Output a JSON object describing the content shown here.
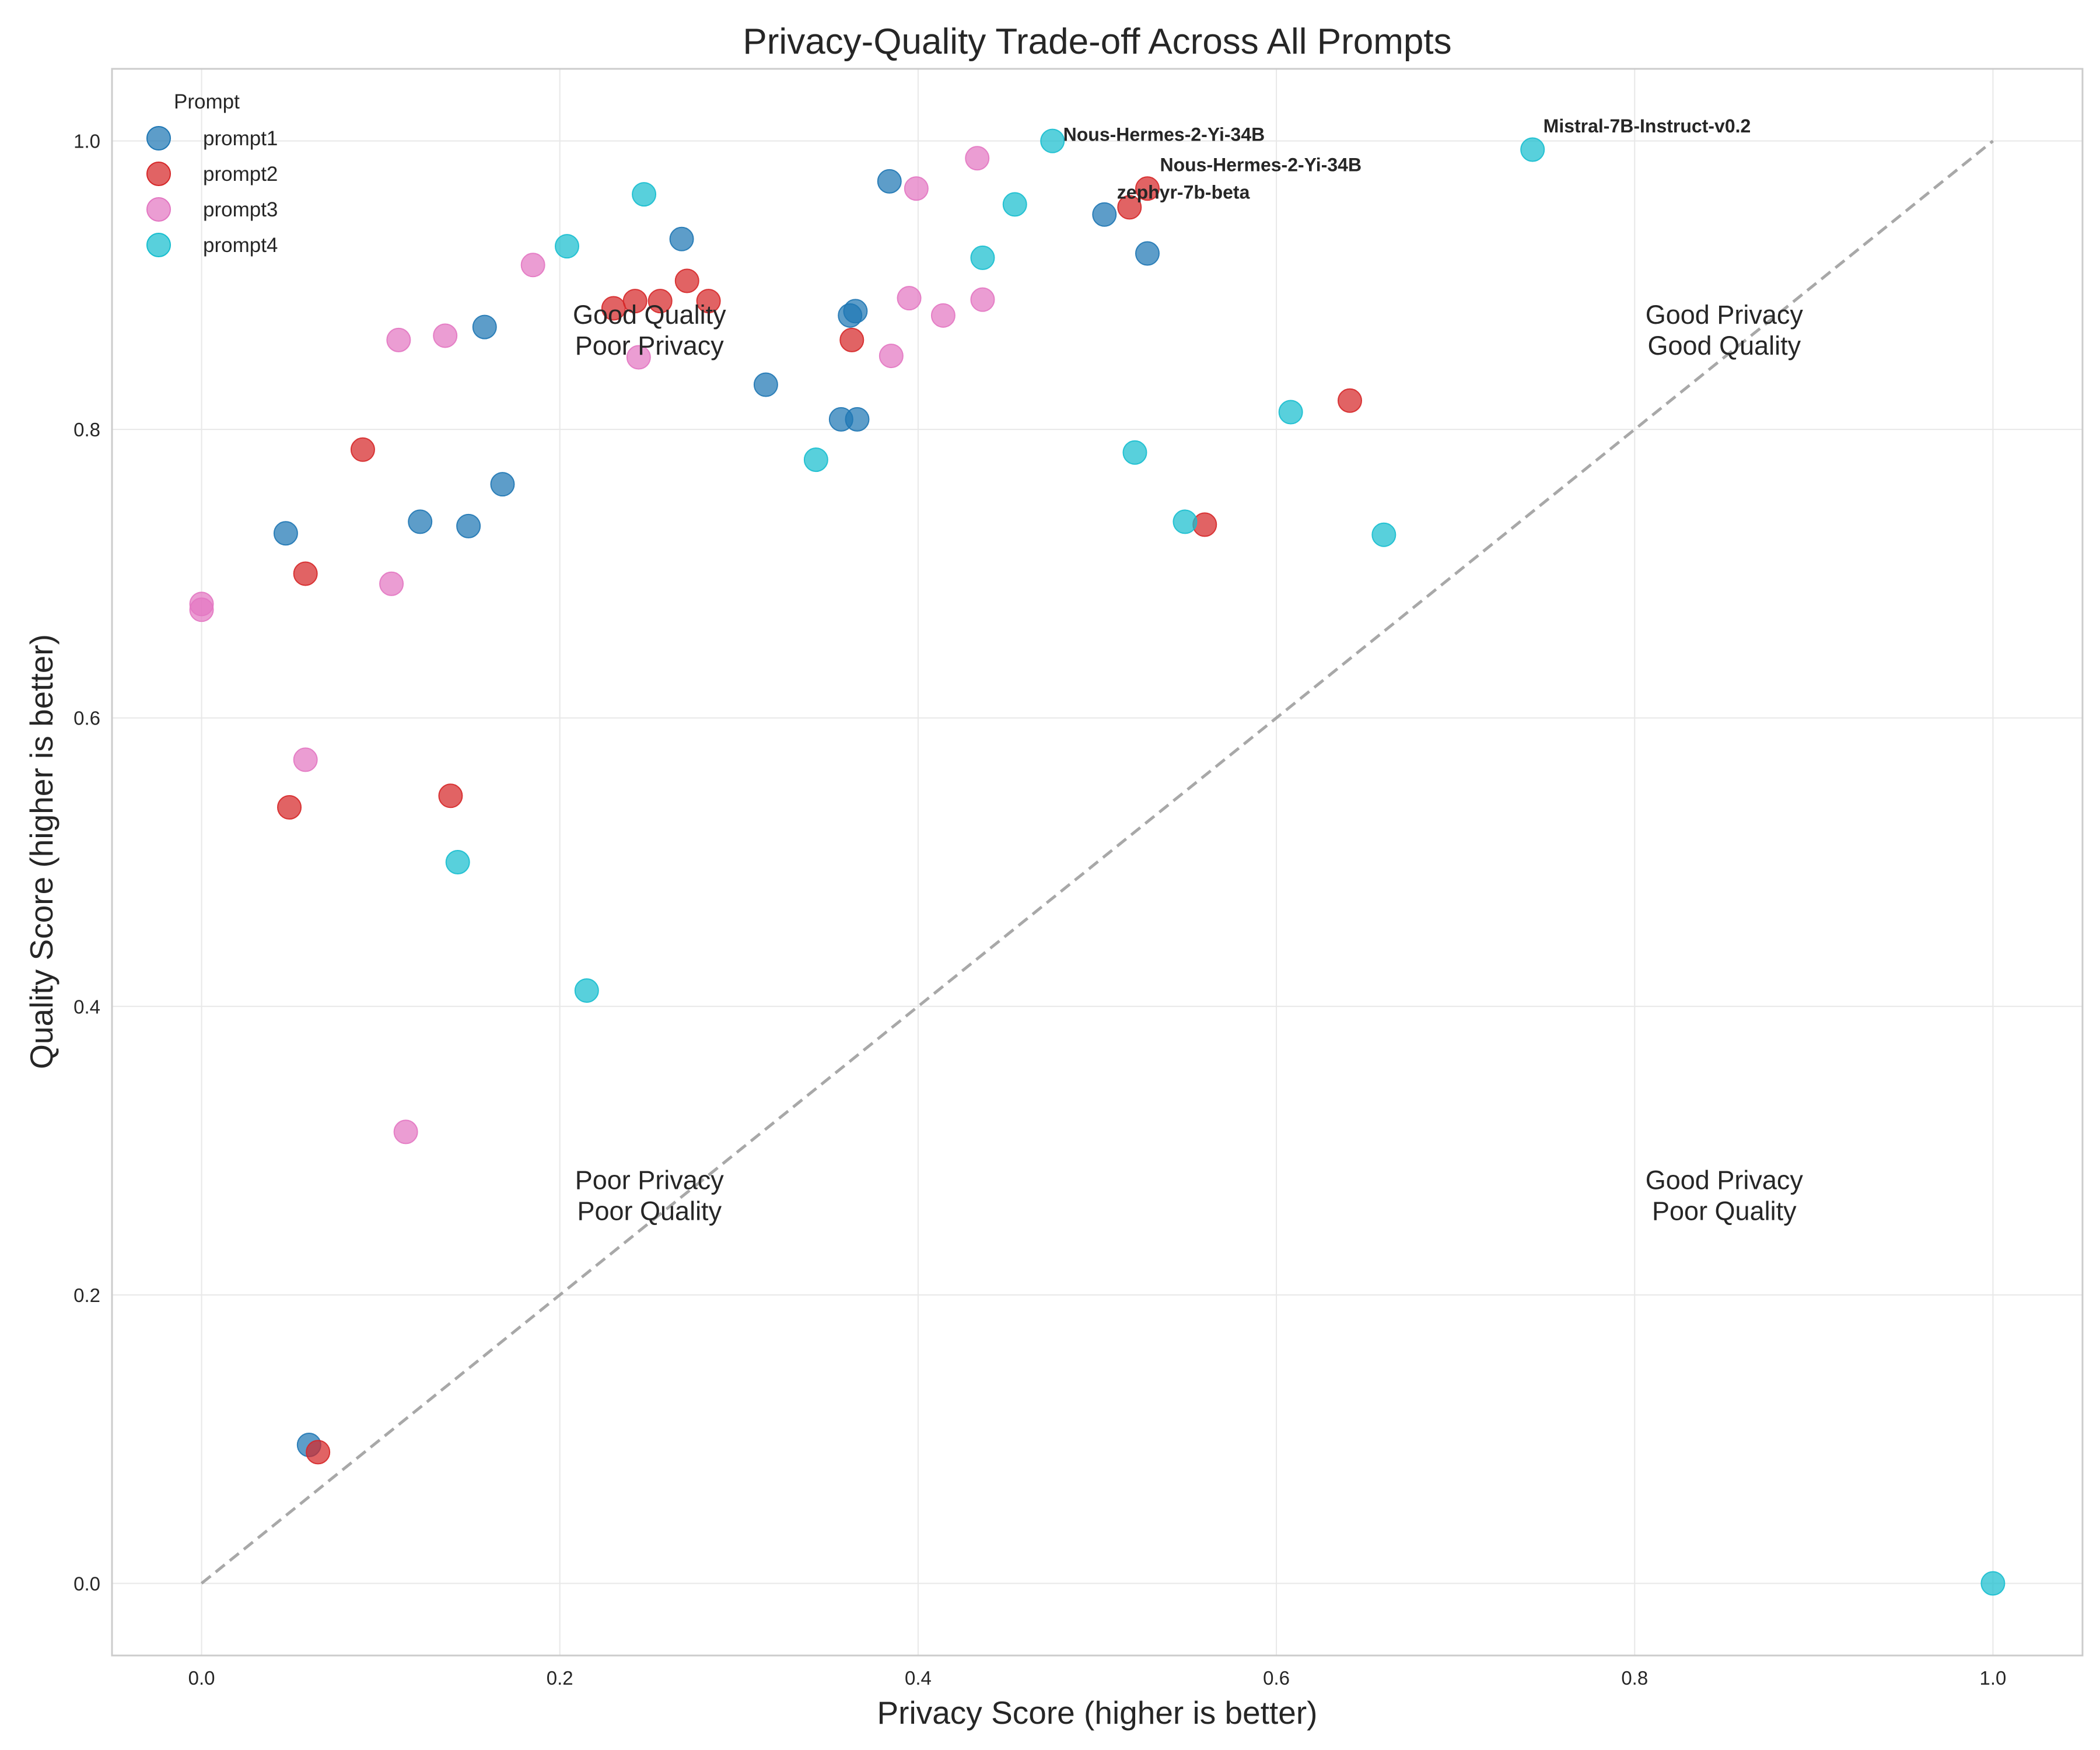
{
  "chart_data": {
    "type": "scatter",
    "title": "Privacy-Quality Trade-off Across All Prompts",
    "xlabel": "Privacy Score (higher is better)",
    "ylabel": "Quality Score (higher is better)",
    "xlim": [
      -0.05,
      1.05
    ],
    "ylim": [
      -0.05,
      1.05
    ],
    "xticks": [
      0.0,
      0.2,
      0.4,
      0.6,
      0.8,
      1.0
    ],
    "yticks": [
      0.0,
      0.2,
      0.4,
      0.6,
      0.8,
      1.0
    ],
    "xtick_labels": [
      "0.0",
      "0.2",
      "0.4",
      "0.6",
      "0.8",
      "1.0"
    ],
    "ytick_labels": [
      "0.0",
      "0.2",
      "0.4",
      "0.6",
      "0.8",
      "1.0"
    ],
    "grid": true,
    "diagonal_reference": [
      [
        0,
        0
      ],
      [
        1,
        1
      ]
    ],
    "legend": {
      "title": "Prompt",
      "placement": "top-left"
    },
    "series": [
      {
        "name": "prompt1",
        "color": "#1f77b4",
        "points": [
          [
            0.047,
            0.728
          ],
          [
            0.122,
            0.736
          ],
          [
            0.149,
            0.733
          ],
          [
            0.158,
            0.871
          ],
          [
            0.168,
            0.762
          ],
          [
            0.268,
            0.932
          ],
          [
            0.315,
            0.831
          ],
          [
            0.357,
            0.807
          ],
          [
            0.362,
            0.879
          ],
          [
            0.365,
            0.882
          ],
          [
            0.366,
            0.807
          ],
          [
            0.384,
            0.972
          ],
          [
            0.504,
            0.949
          ],
          [
            0.528,
            0.922
          ],
          [
            0.06,
            0.096
          ]
        ]
      },
      {
        "name": "prompt2",
        "color": "#d62728",
        "points": [
          [
            0.09,
            0.786
          ],
          [
            0.058,
            0.7
          ],
          [
            0.049,
            0.538
          ],
          [
            0.139,
            0.546
          ],
          [
            0.23,
            0.884
          ],
          [
            0.242,
            0.889
          ],
          [
            0.256,
            0.889
          ],
          [
            0.271,
            0.903
          ],
          [
            0.283,
            0.889
          ],
          [
            0.363,
            0.862
          ],
          [
            0.518,
            0.954
          ],
          [
            0.528,
            0.967
          ],
          [
            0.56,
            0.734
          ],
          [
            0.641,
            0.82
          ],
          [
            0.065,
            0.091
          ]
        ]
      },
      {
        "name": "prompt3",
        "color": "#e377c2",
        "points": [
          [
            0.0,
            0.679
          ],
          [
            0.0,
            0.675
          ],
          [
            0.058,
            0.571
          ],
          [
            0.106,
            0.693
          ],
          [
            0.11,
            0.862
          ],
          [
            0.136,
            0.865
          ],
          [
            0.185,
            0.914
          ],
          [
            0.244,
            0.85
          ],
          [
            0.385,
            0.851
          ],
          [
            0.395,
            0.891
          ],
          [
            0.399,
            0.967
          ],
          [
            0.414,
            0.879
          ],
          [
            0.433,
            0.988
          ],
          [
            0.436,
            0.89
          ],
          [
            0.114,
            0.313
          ]
        ]
      },
      {
        "name": "prompt4",
        "color": "#17becf",
        "points": [
          [
            0.143,
            0.5
          ],
          [
            0.204,
            0.927
          ],
          [
            0.215,
            0.411
          ],
          [
            0.247,
            0.963
          ],
          [
            0.343,
            0.779
          ],
          [
            0.436,
            0.919
          ],
          [
            0.454,
            0.956
          ],
          [
            0.475,
            1.0
          ],
          [
            0.521,
            0.784
          ],
          [
            0.549,
            0.736
          ],
          [
            0.608,
            0.812
          ],
          [
            0.66,
            0.727
          ],
          [
            0.743,
            0.994
          ],
          [
            1.0,
            0.0
          ]
        ]
      }
    ],
    "annotations": [
      {
        "text": "Nous-Hermes-2-Yi-34B",
        "x": 0.475,
        "y": 1.0,
        "dx_data": 0.006,
        "dy_data": 0.0
      },
      {
        "text": "Mistral-7B-Instruct-v0.2",
        "x": 0.743,
        "y": 0.994,
        "dx_data": 0.006,
        "dy_data": 0.012
      },
      {
        "text": "Nous-Hermes-2-Yi-34B",
        "x": 0.528,
        "y": 0.967,
        "dx_data": 0.007,
        "dy_data": 0.012
      },
      {
        "text": "zephyr-7b-beta",
        "x": 0.504,
        "y": 0.949,
        "dx_data": 0.007,
        "dy_data": 0.011
      }
    ],
    "quadrant_labels": [
      {
        "lines": [
          "Good Quality",
          "Poor Privacy"
        ],
        "x": 0.25,
        "y": 0.87
      },
      {
        "lines": [
          "Good Privacy",
          "Good Quality"
        ],
        "x": 0.85,
        "y": 0.87
      },
      {
        "lines": [
          "Poor Privacy",
          "Poor Quality"
        ],
        "x": 0.25,
        "y": 0.27
      },
      {
        "lines": [
          "Good Privacy",
          "Poor Quality"
        ],
        "x": 0.85,
        "y": 0.27
      }
    ]
  }
}
